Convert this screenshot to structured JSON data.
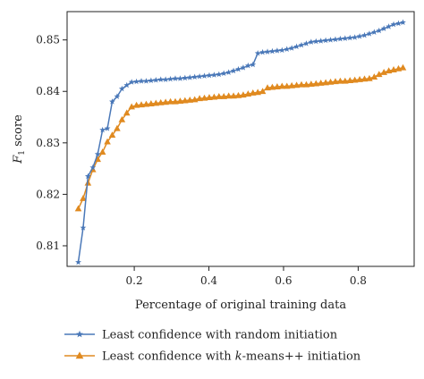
{
  "chart_data": {
    "type": "line",
    "title": "",
    "xlabel": "Percentage of original training data",
    "ylabel_main": "F",
    "ylabel_sub": "1",
    "ylabel_rest": " score",
    "xlim": [
      0.02,
      0.95
    ],
    "ylim": [
      0.806,
      0.8555
    ],
    "xticks": [
      0.2,
      0.4,
      0.6,
      0.8
    ],
    "xtick_labels": [
      "0.2",
      "0.4",
      "0.6",
      "0.8"
    ],
    "yticks": [
      0.81,
      0.82,
      0.83,
      0.84,
      0.85
    ],
    "ytick_labels": [
      "0.81",
      "0.82",
      "0.83",
      "0.84",
      "0.85"
    ],
    "grid": false,
    "legend_position": "bottom",
    "series": [
      {
        "name": "Least confidence with random initiation",
        "color": "#4a78b8",
        "marker": "star",
        "x": [
          0.05,
          0.063,
          0.076,
          0.089,
          0.102,
          0.115,
          0.128,
          0.141,
          0.154,
          0.167,
          0.18,
          0.193,
          0.206,
          0.219,
          0.232,
          0.245,
          0.258,
          0.271,
          0.284,
          0.297,
          0.31,
          0.323,
          0.336,
          0.349,
          0.362,
          0.375,
          0.388,
          0.401,
          0.414,
          0.427,
          0.44,
          0.453,
          0.466,
          0.479,
          0.492,
          0.505,
          0.518,
          0.531,
          0.544,
          0.557,
          0.57,
          0.583,
          0.596,
          0.609,
          0.622,
          0.635,
          0.648,
          0.661,
          0.674,
          0.687,
          0.7,
          0.713,
          0.726,
          0.739,
          0.752,
          0.765,
          0.778,
          0.791,
          0.804,
          0.817,
          0.83,
          0.843,
          0.856,
          0.869,
          0.882,
          0.895,
          0.908,
          0.92
        ],
        "y": [
          0.8068,
          0.8135,
          0.8235,
          0.8252,
          0.8278,
          0.8325,
          0.8328,
          0.838,
          0.839,
          0.8405,
          0.8412,
          0.8418,
          0.8419,
          0.842,
          0.842,
          0.8421,
          0.8422,
          0.8423,
          0.8423,
          0.8424,
          0.8425,
          0.8425,
          0.8426,
          0.8427,
          0.8428,
          0.8429,
          0.843,
          0.8431,
          0.8432,
          0.8433,
          0.8435,
          0.8437,
          0.844,
          0.8443,
          0.8446,
          0.845,
          0.8452,
          0.8474,
          0.8476,
          0.8477,
          0.8478,
          0.8479,
          0.848,
          0.8482,
          0.8484,
          0.8487,
          0.849,
          0.8493,
          0.8496,
          0.8497,
          0.8498,
          0.8499,
          0.85,
          0.8501,
          0.8502,
          0.8503,
          0.8504,
          0.8505,
          0.8507,
          0.8509,
          0.8512,
          0.8515,
          0.8518,
          0.8522,
          0.8526,
          0.853,
          0.8532,
          0.8534
        ]
      },
      {
        "name": "Least confidence with k-means++ initiation",
        "name_parts": [
          "Least confidence with ",
          "k",
          "-means++ initiation"
        ],
        "color": "#e08a20",
        "marker": "triangle",
        "x": [
          0.05,
          0.063,
          0.076,
          0.089,
          0.102,
          0.115,
          0.128,
          0.141,
          0.154,
          0.167,
          0.18,
          0.193,
          0.206,
          0.219,
          0.232,
          0.245,
          0.258,
          0.271,
          0.284,
          0.297,
          0.31,
          0.323,
          0.336,
          0.349,
          0.362,
          0.375,
          0.388,
          0.401,
          0.414,
          0.427,
          0.44,
          0.453,
          0.466,
          0.479,
          0.492,
          0.505,
          0.518,
          0.531,
          0.544,
          0.557,
          0.57,
          0.583,
          0.596,
          0.609,
          0.622,
          0.635,
          0.648,
          0.661,
          0.674,
          0.687,
          0.7,
          0.713,
          0.726,
          0.739,
          0.752,
          0.765,
          0.778,
          0.791,
          0.804,
          0.817,
          0.83,
          0.843,
          0.856,
          0.869,
          0.882,
          0.895,
          0.908,
          0.92
        ],
        "y": [
          0.8172,
          0.8192,
          0.8222,
          0.8248,
          0.8268,
          0.8282,
          0.8302,
          0.8315,
          0.8328,
          0.8345,
          0.8358,
          0.837,
          0.8373,
          0.8374,
          0.8375,
          0.8376,
          0.8377,
          0.8378,
          0.8379,
          0.838,
          0.838,
          0.8381,
          0.8382,
          0.8383,
          0.8384,
          0.8386,
          0.8387,
          0.8388,
          0.8389,
          0.839,
          0.839,
          0.8391,
          0.8391,
          0.8392,
          0.8393,
          0.8395,
          0.8397,
          0.8398,
          0.84,
          0.8407,
          0.8408,
          0.8409,
          0.841,
          0.841,
          0.8411,
          0.8412,
          0.8413,
          0.8413,
          0.8414,
          0.8415,
          0.8416,
          0.8417,
          0.8418,
          0.8419,
          0.842,
          0.842,
          0.8421,
          0.8422,
          0.8423,
          0.8424,
          0.8425,
          0.8428,
          0.8433,
          0.8437,
          0.844,
          0.8442,
          0.8444,
          0.8446
        ]
      }
    ]
  }
}
